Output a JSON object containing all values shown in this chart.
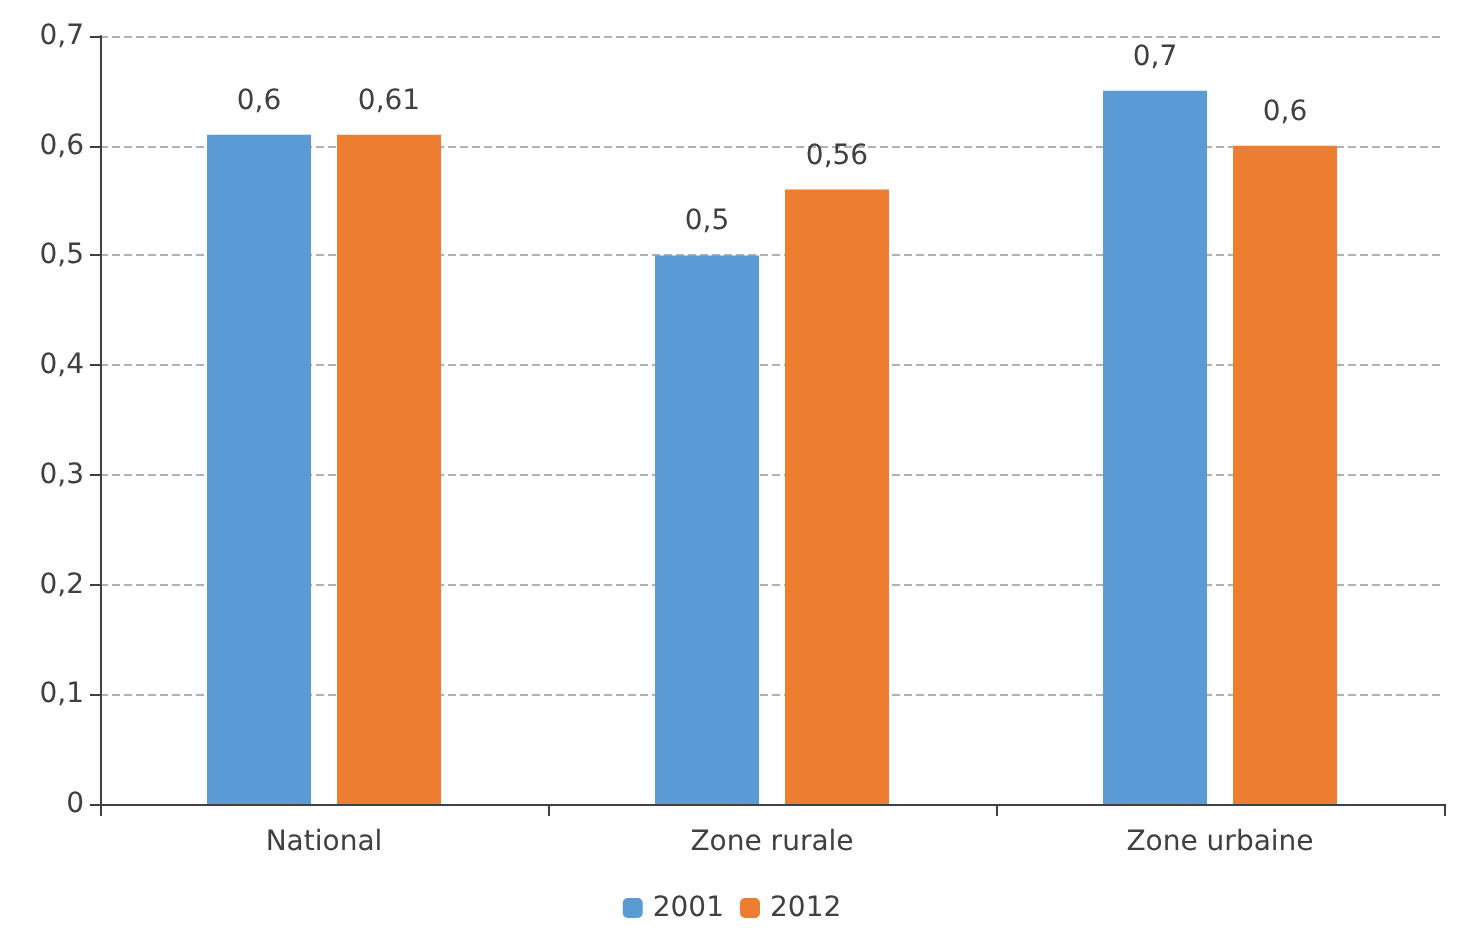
{
  "chart_data": {
    "type": "bar",
    "categories": [
      "National",
      "Zone rurale",
      "Zone urbaine"
    ],
    "series": [
      {
        "name": "2001",
        "color": "#5b9bd5",
        "values": [
          0.61,
          0.5,
          0.65
        ],
        "value_labels": [
          "0,6",
          "0,5",
          "0,7"
        ]
      },
      {
        "name": "2012",
        "color": "#ed7d31",
        "values": [
          0.61,
          0.56,
          0.6
        ],
        "value_labels": [
          "0,61",
          "0,56",
          "0,6"
        ]
      }
    ],
    "ylim": [
      0,
      0.7
    ],
    "yticks": [
      0,
      {
        "value": 0.1,
        "label": "0,1"
      },
      {
        "value": 0.2,
        "label": "0,2"
      },
      {
        "value": 0.3,
        "label": "0,3"
      },
      {
        "value": 0.4,
        "label": "0,4"
      },
      {
        "value": 0.5,
        "label": "0,5"
      },
      {
        "value": 0.6,
        "label": "0,6"
      },
      {
        "value": 0.7,
        "label": "0,7"
      }
    ],
    "grid": "y",
    "legend": "bottom"
  }
}
